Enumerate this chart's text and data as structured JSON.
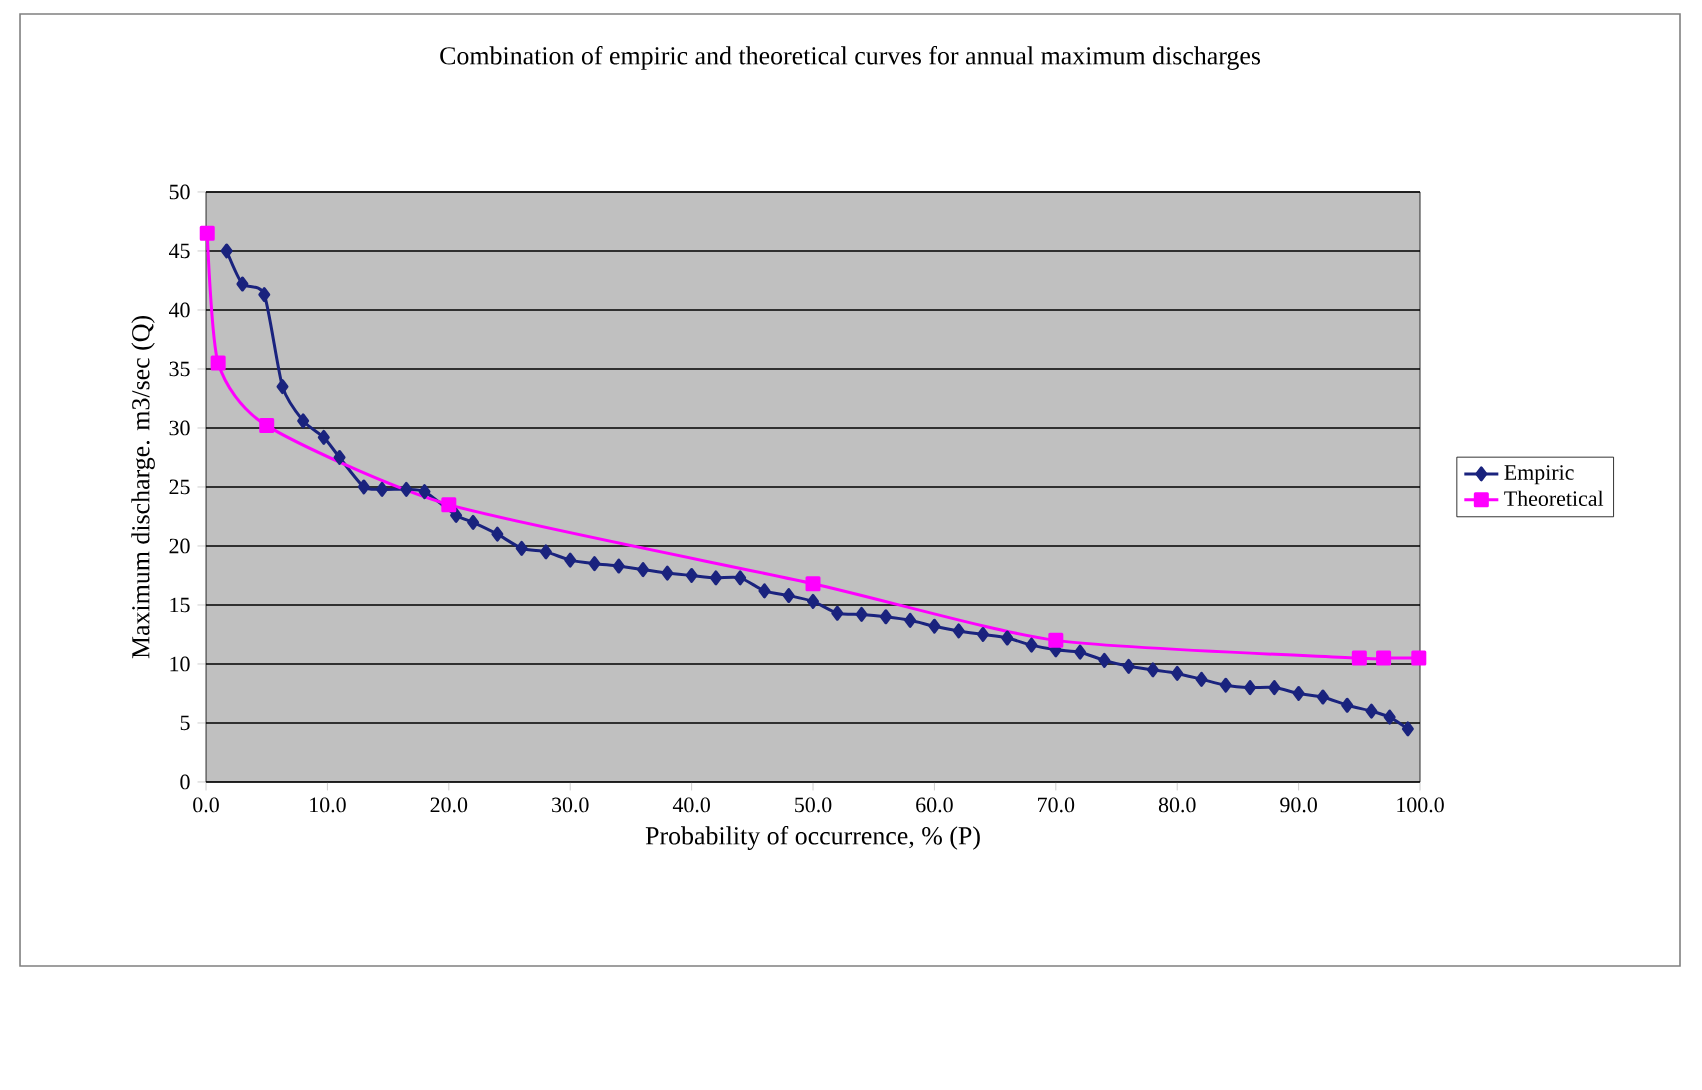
{
  "chart_data": {
    "type": "line",
    "title": "Combination of empiric and theoretical curves for annual maximum discharges",
    "xlabel": "Probability of occurrence, % (P)",
    "ylabel": "Maximum discharge. m3/sec (Q)",
    "xlim": [
      0,
      100
    ],
    "ylim": [
      0,
      50
    ],
    "xticks": [
      {
        "value": 0,
        "label": "0.0"
      },
      {
        "value": 10,
        "label": "10.0"
      },
      {
        "value": 20,
        "label": "20.0"
      },
      {
        "value": 30,
        "label": "30.0"
      },
      {
        "value": 40,
        "label": "40.0"
      },
      {
        "value": 50,
        "label": "50.0"
      },
      {
        "value": 60,
        "label": "60.0"
      },
      {
        "value": 70,
        "label": "70.0"
      },
      {
        "value": 80,
        "label": "80.0"
      },
      {
        "value": 90,
        "label": "90.0"
      },
      {
        "value": 100,
        "label": "100.0"
      }
    ],
    "yticks": [
      0,
      5,
      10,
      15,
      20,
      25,
      30,
      35,
      40,
      45,
      50
    ],
    "grid": "y",
    "legend": "right",
    "line_style": "solid",
    "series": [
      {
        "name": "Empiric",
        "color": "#1a237e",
        "marker": "diamond",
        "x": [
          1.7,
          3,
          4.8,
          6.3,
          8,
          9.7,
          11,
          13,
          14.5,
          16.5,
          18,
          20.6,
          22,
          24,
          26,
          28,
          30,
          32,
          34,
          36,
          38,
          40,
          42,
          44,
          46,
          48,
          50,
          52,
          54,
          56,
          58,
          60,
          62,
          64,
          66,
          68,
          70,
          72,
          74,
          76,
          78,
          80,
          82,
          84,
          86,
          88,
          90,
          92,
          94,
          96,
          97.5,
          99
        ],
        "values": [
          45,
          42.2,
          41.3,
          33.5,
          30.6,
          29.2,
          27.5,
          25,
          24.8,
          24.8,
          24.6,
          22.6,
          22,
          21,
          19.8,
          19.5,
          18.8,
          18.5,
          18.3,
          18,
          17.7,
          17.5,
          17.3,
          17.3,
          16.2,
          15.8,
          15.3,
          14.3,
          14.2,
          14,
          13.7,
          13.2,
          12.8,
          12.5,
          12.2,
          11.6,
          11.2,
          11,
          10.3,
          9.8,
          9.5,
          9.2,
          8.7,
          8.2,
          8,
          8,
          7.5,
          7.2,
          6.5,
          6,
          5.5,
          4.5
        ]
      },
      {
        "name": "Theoretical",
        "color": "#ff00ff",
        "marker": "square",
        "x": [
          0.1,
          1,
          5,
          20,
          50,
          70,
          95,
          97,
          99.9
        ],
        "values": [
          46.5,
          35.5,
          30.2,
          23.5,
          16.8,
          12,
          10.5,
          10.5,
          10.5
        ]
      }
    ]
  }
}
